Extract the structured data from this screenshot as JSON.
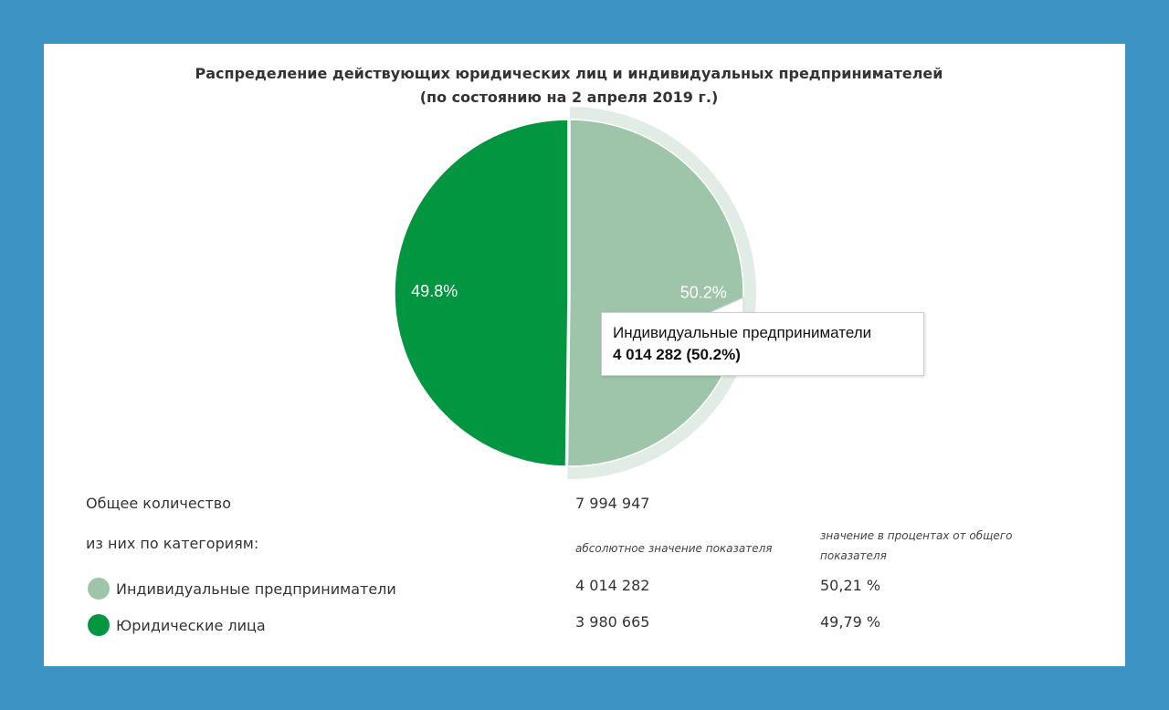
{
  "title": {
    "line1": "Распределение действующих юридических лиц и индивидуальных предпринимателей",
    "line2": "(по состоянию на 2 апреля 2019 г.)"
  },
  "chart_data": {
    "type": "pie",
    "title": "Распределение действующих юридических лиц и индивидуальных предпринимателей (по состоянию на 2 апреля 2019 г.)",
    "slices": [
      {
        "name": "Индивидуальные предприниматели",
        "value": 4014282,
        "percent_label": "50.2%",
        "color": "#9ec5aa",
        "highlighted": true
      },
      {
        "name": "Юридические лица",
        "value": 3980665,
        "percent_label": "49.8%",
        "color": "#039641",
        "highlighted": false
      }
    ]
  },
  "tooltip": {
    "name": "Индивидуальные предприниматели",
    "value_text": "4 014 282 (50.2%)"
  },
  "summary": {
    "total_label": "Общее количество",
    "total_value": "7 994 947",
    "categories_label": "из них по категориям:",
    "abs_header": "абсолютное значение показателя",
    "pct_header_line1": "значение в процентах от общего",
    "pct_header_line2": "показателя",
    "rows": [
      {
        "name": "Индивидуальные предприниматели",
        "abs": "4 014 282",
        "pct": "50,21 %",
        "color": "#9ec5aa"
      },
      {
        "name": "Юридические лица",
        "abs": "3 980 665",
        "pct": "49,79 %",
        "color": "#039641"
      }
    ]
  },
  "colors": {
    "background": "#3d93c4",
    "card": "#ffffff",
    "halo": "#e1ece4"
  }
}
